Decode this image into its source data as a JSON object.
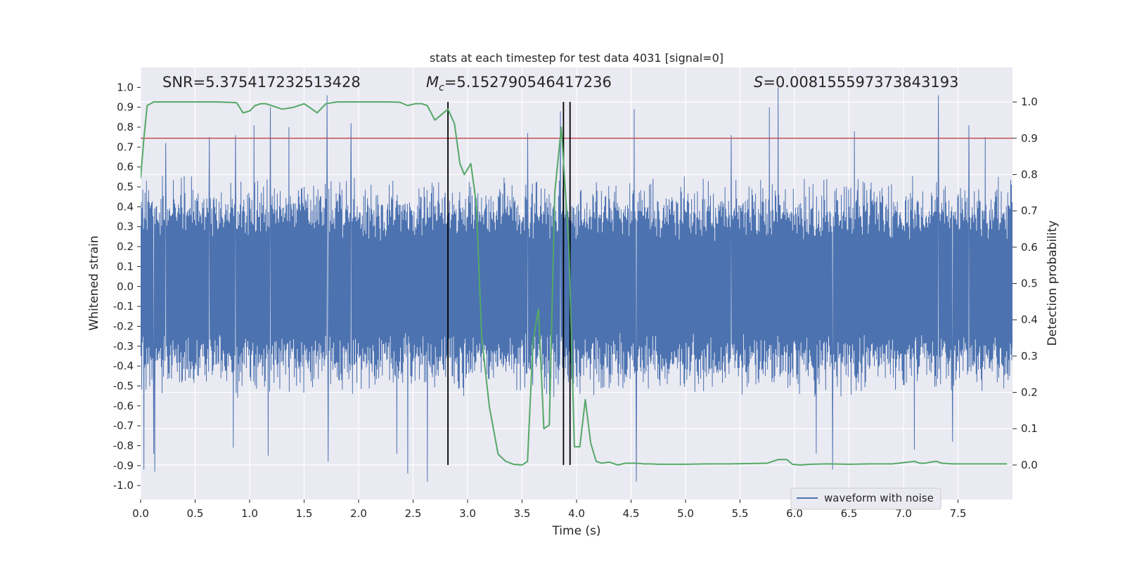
{
  "chart_data": {
    "type": "line",
    "title": "stats at each timestep for test data 4031 [signal=0]",
    "xlabel": "Time (s)",
    "ylabel_left": "Whitened strain",
    "ylabel_right": "Detection probability",
    "xlim": [
      0.0,
      8.0
    ],
    "ylim_left": [
      -1.07,
      1.1
    ],
    "ylim_right": [
      -0.095,
      1.095
    ],
    "x_ticks": [
      "0.0",
      "0.5",
      "1.0",
      "1.5",
      "2.0",
      "2.5",
      "3.0",
      "3.5",
      "4.0",
      "4.5",
      "5.0",
      "5.5",
      "6.0",
      "6.5",
      "7.0",
      "7.5"
    ],
    "x_tick_values": [
      0.0,
      0.5,
      1.0,
      1.5,
      2.0,
      2.5,
      3.0,
      3.5,
      4.0,
      4.5,
      5.0,
      5.5,
      6.0,
      6.5,
      7.0,
      7.5
    ],
    "y_left_ticks": [
      "1.0",
      "0.9",
      "0.8",
      "0.7",
      "0.6",
      "0.5",
      "0.4",
      "0.3",
      "0.2",
      "0.1",
      "0.0",
      "-0.1",
      "-0.2",
      "-0.3",
      "-0.4",
      "-0.5",
      "-0.6",
      "-0.7",
      "-0.8",
      "-0.9",
      "-1.0"
    ],
    "y_left_tick_values": [
      1.0,
      0.9,
      0.8,
      0.7,
      0.6,
      0.5,
      0.4,
      0.3,
      0.2,
      0.1,
      0.0,
      -0.1,
      -0.2,
      -0.3,
      -0.4,
      -0.5,
      -0.6,
      -0.7,
      -0.8,
      -0.9,
      -1.0
    ],
    "y_right_ticks": [
      "1.0",
      "0.9",
      "0.8",
      "0.7",
      "0.6",
      "0.5",
      "0.4",
      "0.3",
      "0.2",
      "0.1",
      "0.0"
    ],
    "y_right_tick_values": [
      1.0,
      0.9,
      0.8,
      0.7,
      0.6,
      0.5,
      0.4,
      0.3,
      0.2,
      0.1,
      0.0
    ],
    "annotations": {
      "snr": "SNR=5.375417232513428",
      "mc_symbol": "M",
      "mc_sub": "c",
      "mc_value": "=5.152790546417236",
      "s_symbol": "S",
      "s_value": "=0.008155597373843193"
    },
    "legend": {
      "label": "waveform with noise",
      "position": "lower-right"
    },
    "threshold": {
      "value": 0.9,
      "axis": "right",
      "color": "#c44e52"
    },
    "vlines": [
      2.82,
      3.88,
      3.94
    ],
    "waveform": {
      "name": "waveform with noise",
      "color": "#4c72b0",
      "x_range": [
        0.0,
        8.0
      ],
      "samples": 2400,
      "typical_envelope": 0.42,
      "spikes": [
        {
          "t": 0.03,
          "v": -0.92
        },
        {
          "t": 0.12,
          "v": -0.84
        },
        {
          "t": 0.13,
          "v": -0.93
        },
        {
          "t": 0.23,
          "v": 0.72
        },
        {
          "t": 0.63,
          "v": 0.75
        },
        {
          "t": 0.85,
          "v": -0.81
        },
        {
          "t": 0.87,
          "v": 0.76
        },
        {
          "t": 1.04,
          "v": 0.81
        },
        {
          "t": 1.17,
          "v": -0.85
        },
        {
          "t": 1.19,
          "v": 0.9
        },
        {
          "t": 1.36,
          "v": 0.8
        },
        {
          "t": 1.71,
          "v": 0.96
        },
        {
          "t": 1.72,
          "v": -0.88
        },
        {
          "t": 1.93,
          "v": 0.82
        },
        {
          "t": 2.35,
          "v": -0.84
        },
        {
          "t": 2.45,
          "v": -0.94
        },
        {
          "t": 2.63,
          "v": -0.98
        },
        {
          "t": 3.55,
          "v": 0.77
        },
        {
          "t": 3.85,
          "v": 0.88
        },
        {
          "t": 4.53,
          "v": 0.89
        },
        {
          "t": 4.55,
          "v": -0.98
        },
        {
          "t": 5.42,
          "v": 0.76
        },
        {
          "t": 5.77,
          "v": 0.9
        },
        {
          "t": 5.85,
          "v": 1.0
        },
        {
          "t": 6.2,
          "v": -0.84
        },
        {
          "t": 6.35,
          "v": -0.92
        },
        {
          "t": 6.55,
          "v": 0.78
        },
        {
          "t": 7.1,
          "v": -0.82
        },
        {
          "t": 7.32,
          "v": 0.96
        },
        {
          "t": 7.45,
          "v": -0.78
        },
        {
          "t": 7.6,
          "v": 0.81
        },
        {
          "t": 7.75,
          "v": 0.75
        }
      ]
    },
    "detection_probability": {
      "name": "detection probability",
      "color": "#55a868",
      "x": [
        0.0,
        0.03,
        0.06,
        0.12,
        0.2,
        0.3,
        0.4,
        0.5,
        0.6,
        0.7,
        0.8,
        0.88,
        0.94,
        1.0,
        1.05,
        1.1,
        1.15,
        1.2,
        1.3,
        1.4,
        1.5,
        1.55,
        1.62,
        1.7,
        1.8,
        1.9,
        2.0,
        2.1,
        2.2,
        2.3,
        2.38,
        2.45,
        2.52,
        2.58,
        2.63,
        2.7,
        2.76,
        2.82,
        2.88,
        2.93,
        2.97,
        3.03,
        3.08,
        3.13,
        3.2,
        3.28,
        3.35,
        3.42,
        3.5,
        3.55,
        3.6,
        3.65,
        3.7,
        3.75,
        3.8,
        3.86,
        3.93,
        3.98,
        4.03,
        4.08,
        4.13,
        4.18,
        4.23,
        4.3,
        4.38,
        4.45,
        4.55,
        4.62,
        4.68,
        4.75,
        4.85,
        5.0,
        5.2,
        5.4,
        5.6,
        5.75,
        5.85,
        5.93,
        5.98,
        6.05,
        6.15,
        6.3,
        6.5,
        6.7,
        6.9,
        7.1,
        7.15,
        7.2,
        7.25,
        7.3,
        7.35,
        7.45,
        7.55,
        7.65,
        7.75,
        7.85,
        7.95
      ],
      "y": [
        0.79,
        0.9,
        0.99,
        1.0,
        1.0,
        1.0,
        1.0,
        1.0,
        1.0,
        1.0,
        0.999,
        0.998,
        0.97,
        0.975,
        0.99,
        0.995,
        0.995,
        0.99,
        0.98,
        0.985,
        0.995,
        0.985,
        0.97,
        0.995,
        1.0,
        1.0,
        1.0,
        1.0,
        1.0,
        1.0,
        0.999,
        0.99,
        0.995,
        0.995,
        0.99,
        0.95,
        0.965,
        0.98,
        0.94,
        0.83,
        0.8,
        0.83,
        0.72,
        0.35,
        0.16,
        0.03,
        0.01,
        0.002,
        0.0,
        0.01,
        0.34,
        0.43,
        0.1,
        0.11,
        0.75,
        0.93,
        0.6,
        0.05,
        0.05,
        0.18,
        0.06,
        0.01,
        0.005,
        0.008,
        0.0,
        0.005,
        0.005,
        0.003,
        0.003,
        0.002,
        0.002,
        0.002,
        0.003,
        0.003,
        0.004,
        0.005,
        0.015,
        0.015,
        0.002,
        0.0,
        0.002,
        0.003,
        0.002,
        0.003,
        0.003,
        0.01,
        0.005,
        0.005,
        0.008,
        0.01,
        0.005,
        0.003,
        0.003,
        0.003,
        0.003,
        0.003,
        0.003
      ]
    }
  }
}
